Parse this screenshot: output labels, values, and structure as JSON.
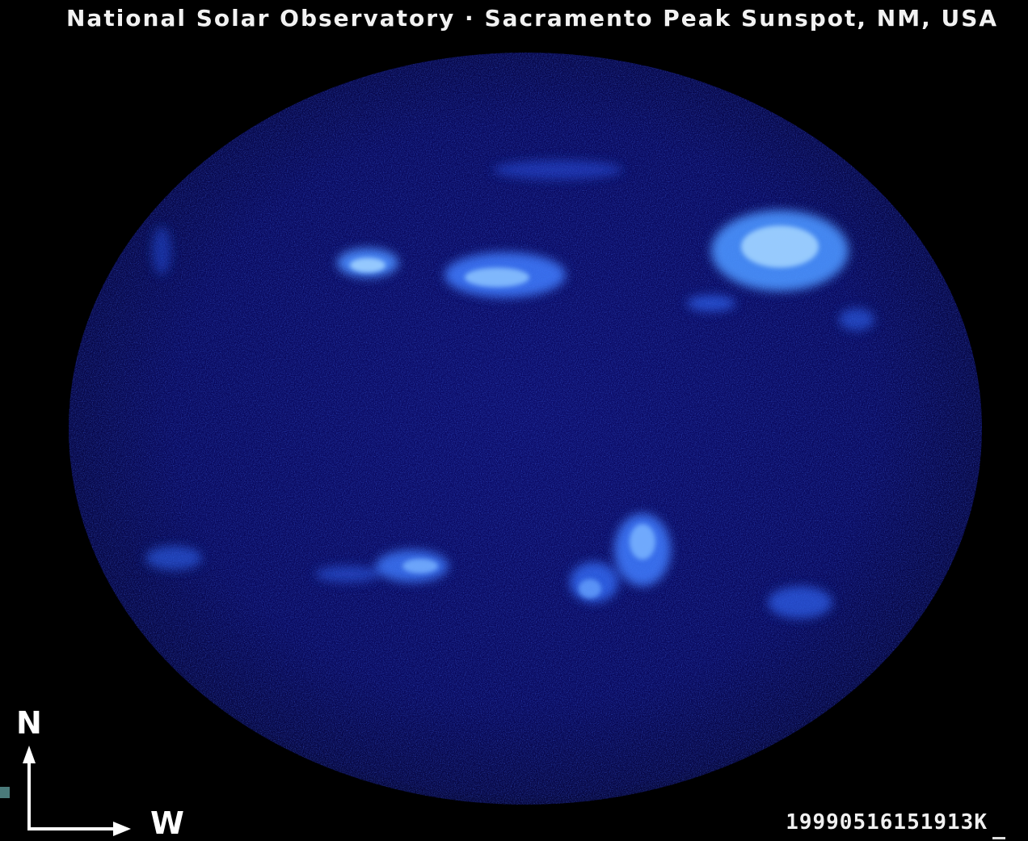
{
  "title": "National Solar Observatory · Sacramento Peak  Sunspot, NM, USA",
  "timestamp": "19990516151913K",
  "compass": {
    "north": "N",
    "west": "W"
  },
  "colors": {
    "background": "#000000",
    "disk": "#0a0a60",
    "plage": "#5aa8ff",
    "text": "#f2f2f2"
  }
}
